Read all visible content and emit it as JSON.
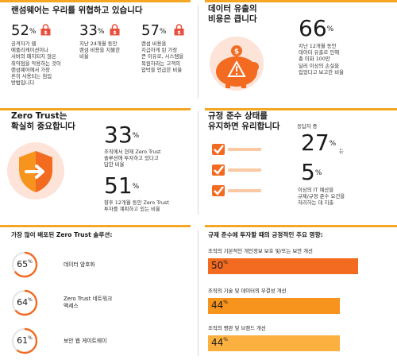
{
  "ransomware": {
    "title": "랜섬웨어는 우리를 위협하고 있습니다",
    "stats": [
      {
        "value": "52",
        "pct": "%",
        "text": [
          "공격자가 웹",
          "애플리케이션이나",
          "서버의 패치되지 않은",
          "취약점을 악용하는 것이",
          "랜섬웨어에서 가장",
          "흔히 사용되는 침입",
          "방법입니다"
        ]
      },
      {
        "value": "33",
        "pct": "%",
        "text": [
          "지난 24개월 동안",
          "랜섬 비용을 지불한",
          "비율"
        ]
      },
      {
        "value": "57",
        "pct": "%",
        "text": [
          "랜섬 비용을",
          "지급하게 된 가장",
          "큰 이유로, 시스템을",
          "복원하라는 고객의",
          "압박을 언급한 비율"
        ]
      }
    ],
    "icon": "padlock-dollar-icon"
  },
  "breach": {
    "title": [
      "데이터 유출의",
      "비용은 큽니다"
    ],
    "value": "66",
    "pct": "%",
    "text": [
      "지난 12개월 동안",
      "데이터 유출로 인해",
      "총 미화 100만",
      "달러 이상의 손실을",
      "입었다고 보고한 비율"
    ],
    "icon": "piggy-bank-warning-icon"
  },
  "zerotrust": {
    "title": [
      "Zero Trust는",
      "확실히 중요합니다"
    ],
    "stats": [
      {
        "value": "33",
        "pct": "%",
        "text": [
          "조직에서 현재 Zero Trust",
          "솔루션에 투자하고 있다고",
          "답한 비율"
        ]
      },
      {
        "value": "51",
        "pct": "%",
        "text": [
          "향후 12개월 동안 Zero Trust",
          "투자를 계획하고 있는 비율"
        ]
      }
    ],
    "icon": "shield-arrow-icon"
  },
  "compliance": {
    "title": [
      "규정 준수 상태를",
      "유지하면 유리합니다"
    ],
    "pre": "응답자 중",
    "value1": "27",
    "pct": "%",
    "post1": "는",
    "value2": "5",
    "text": [
      "이상의 IT 예산을",
      "규제/규정 준수 요건을",
      "처리하는 데 지출"
    ],
    "icon": "checklist-icon"
  },
  "chart_data": [
    {
      "type": "donut",
      "title": "가장 많이 배포된 Zero Trust 솔루션:",
      "categories": [
        "데이터 암호화",
        "Zero Trust 네트워크 액세스",
        "보안 웹 게이트웨이"
      ],
      "values": [
        65,
        64,
        61
      ],
      "labels": [
        [
          "데이터 암호화"
        ],
        [
          "Zero Trust 네트워크",
          "액세스"
        ],
        [
          "보안 웹 게이트웨이"
        ]
      ],
      "ylim": [
        0,
        100
      ],
      "colors": {
        "fill": "#f26b21",
        "track": "#e3e3e3"
      }
    },
    {
      "type": "bar",
      "title": "규제 준수에 투자할 때의 긍정적인 주요 영향:",
      "categories": [
        "조직의 기본적인 개인정보 보호 및/또는 보안 개선",
        "조직의 기술 및 데이터의 무결성 개선",
        "조직의 평판 및 브랜드 개선"
      ],
      "values": [
        50,
        44,
        44
      ],
      "ylim": [
        0,
        100
      ],
      "colors": [
        "#f26b21",
        "#f7941d",
        "#fbb040"
      ]
    }
  ],
  "colors": {
    "accent": "#f5a623",
    "orange": "#f26b21",
    "lock": "#e84e3c"
  }
}
